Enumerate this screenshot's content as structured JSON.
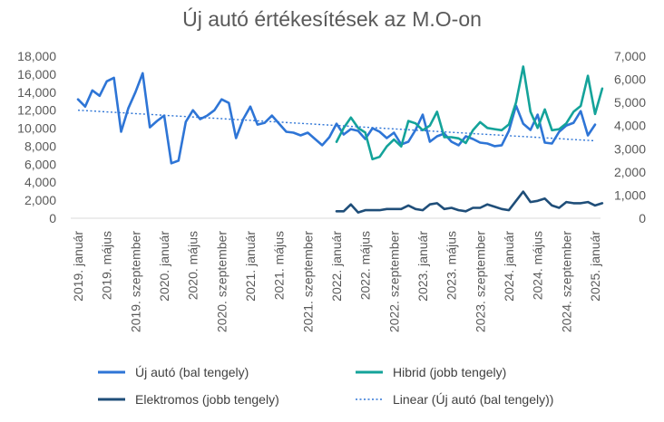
{
  "chart_data": {
    "type": "line",
    "title": "Új autó értékesítések az M.O-on",
    "left_axis": {
      "min": 0,
      "max": 18000,
      "step": 2000,
      "tick_labels": [
        "0",
        "2,000",
        "4,000",
        "6,000",
        "8,000",
        "10,000",
        "12,000",
        "14,000",
        "16,000",
        "18,000"
      ]
    },
    "right_axis": {
      "min": 0,
      "max": 7000,
      "step": 1000,
      "tick_labels": [
        "0",
        "1,000",
        "2,000",
        "3,000",
        "4,000",
        "5,000",
        "6,000",
        "7,000"
      ]
    },
    "x_start": "2019-01",
    "x_end": "2025-01",
    "x_tick_labels": [
      "2019. január",
      "2019. május",
      "2019. szeptember",
      "2020. január",
      "2020. május",
      "2020. szeptember",
      "2021. január",
      "2021. május",
      "2021. szeptember",
      "2022. január",
      "2022. május",
      "2022. szeptember",
      "2023. január",
      "2023. május",
      "2023. szeptember",
      "2024. január",
      "2024. május",
      "2024. szeptember",
      "2025. január"
    ],
    "series": [
      {
        "name": "Új autó (bal tengely)",
        "axis": "left",
        "color": "#2e75d6",
        "start": "2019-01",
        "values": [
          13200,
          12400,
          14200,
          13600,
          15200,
          15600,
          9600,
          12200,
          14000,
          16100,
          10100,
          10800,
          11400,
          6100,
          6400,
          10700,
          12000,
          11000,
          11400,
          12000,
          13200,
          12800,
          8900,
          11000,
          12400,
          10400,
          10600,
          11400,
          10500,
          9600,
          9500,
          9200,
          9500,
          8800,
          8100,
          9000,
          10500,
          9300,
          9900,
          9700,
          8800,
          10000,
          9600,
          8900,
          9500,
          8200,
          8500,
          9800,
          11500,
          8500,
          9100,
          9400,
          8500,
          8100,
          9100,
          8800,
          8400,
          8300,
          8000,
          8100,
          9700,
          12500,
          10500,
          9800,
          11500,
          8400,
          8300,
          9600,
          10300,
          10600,
          11900,
          9200,
          10400
        ]
      },
      {
        "name": "Hibrid (jobb tengely)",
        "axis": "right",
        "color": "#14a39a",
        "start": "2022-01",
        "values": [
          3300,
          3900,
          4350,
          3900,
          3700,
          2550,
          2650,
          3100,
          3400,
          3100,
          4200,
          4100,
          3800,
          4000,
          4600,
          3500,
          3500,
          3450,
          3250,
          3800,
          4150,
          3900,
          3850,
          3800,
          4050,
          5000,
          6550,
          4600,
          3900,
          4700,
          3800,
          3850,
          4100,
          4600,
          4850,
          6150,
          4500,
          5600
        ]
      },
      {
        "name": "Elektromos (jobb tengely)",
        "axis": "right",
        "color": "#1f4e79",
        "start": "2022-01",
        "values": [
          300,
          300,
          600,
          250,
          350,
          350,
          350,
          400,
          400,
          400,
          550,
          400,
          350,
          600,
          650,
          400,
          450,
          350,
          300,
          450,
          450,
          600,
          500,
          400,
          350,
          750,
          1150,
          700,
          750,
          850,
          550,
          450,
          700,
          650,
          650,
          700,
          550,
          650
        ]
      }
    ],
    "trendline": {
      "name": "Linear (Új autó (bal tengely))",
      "of": "Új autó (bal tengely)",
      "color": "#2e75d6",
      "from": 12000,
      "to": 8600
    },
    "legend": {
      "position": "bottom",
      "entries": [
        "Új autó (bal tengely)",
        "Hibrid (jobb tengely)",
        "Elektromos (jobb tengely)",
        "Linear (Új autó (bal tengely))"
      ]
    }
  }
}
